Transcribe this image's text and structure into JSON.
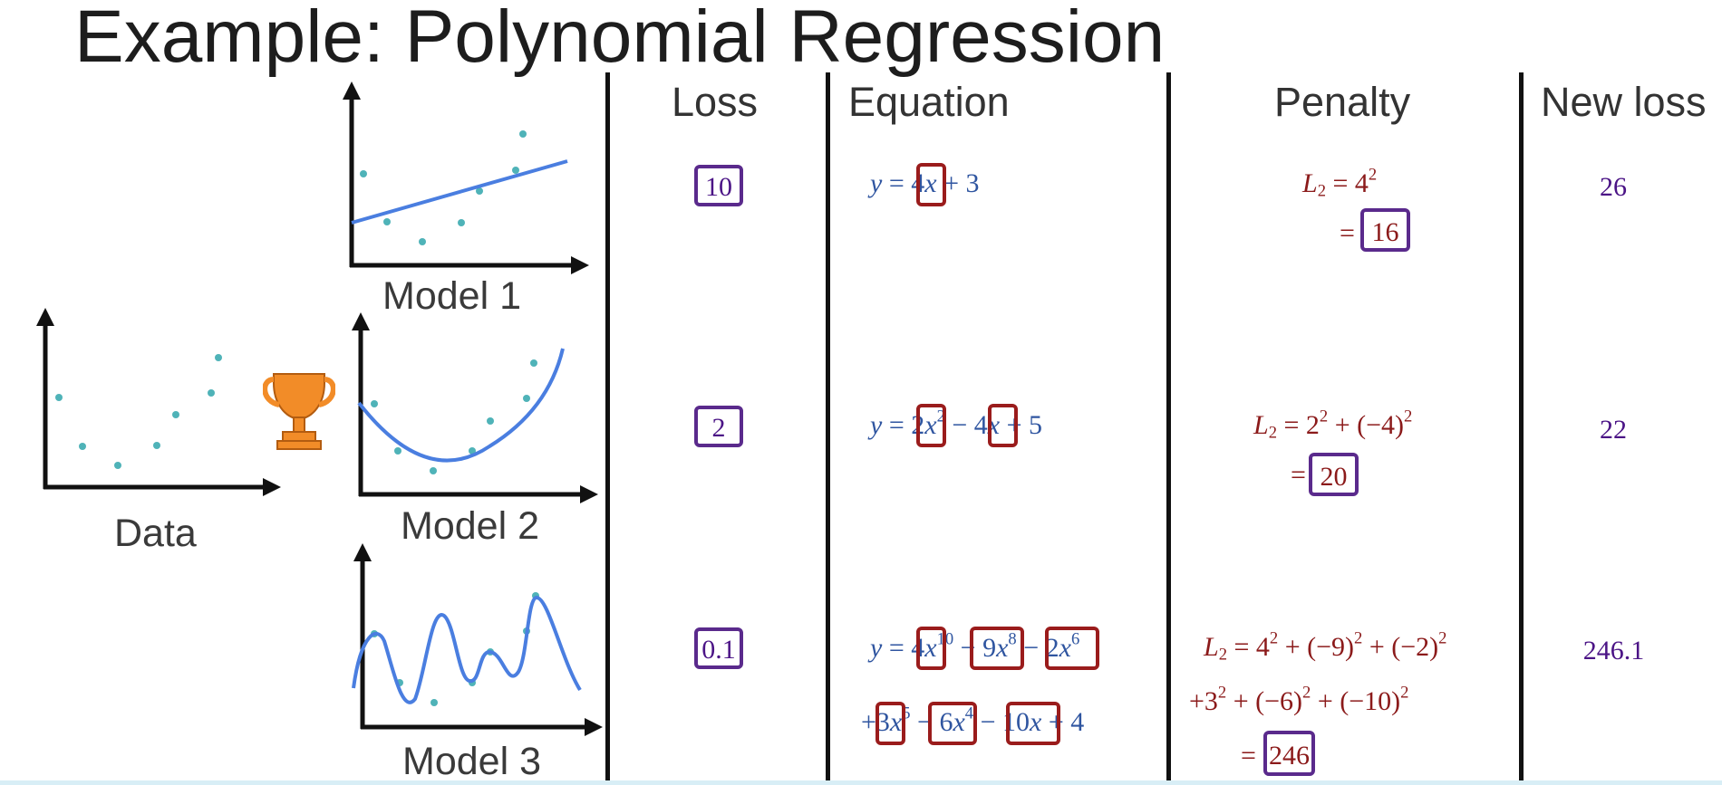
{
  "title": "Example: Polynomial Regression",
  "columns": {
    "loss": "Loss",
    "equation": "Equation",
    "penalty": "Penalty",
    "new_loss": "New loss"
  },
  "plots": {
    "data_label": "Data",
    "model1_label": "Model 1",
    "model2_label": "Model 2",
    "model3_label": "Model 3"
  },
  "rows": [
    {
      "loss": "10",
      "new_loss": "26",
      "penalty_total": "16"
    },
    {
      "loss": "2",
      "new_loss": "22",
      "penalty_total": "20"
    },
    {
      "loss": "0.1",
      "new_loss": "246.1",
      "penalty_total": "246"
    }
  ],
  "icons": {
    "winner": "trophy-icon"
  },
  "colors": {
    "plot_line": "#4a7ee0",
    "data_point": "#4fb3b8",
    "trophy": "#f28c28",
    "equation_text": "#2f55a0",
    "penalty_text": "#8b1a1a",
    "box_purple": "#5a2a8c",
    "box_red": "#9a1c1c"
  }
}
